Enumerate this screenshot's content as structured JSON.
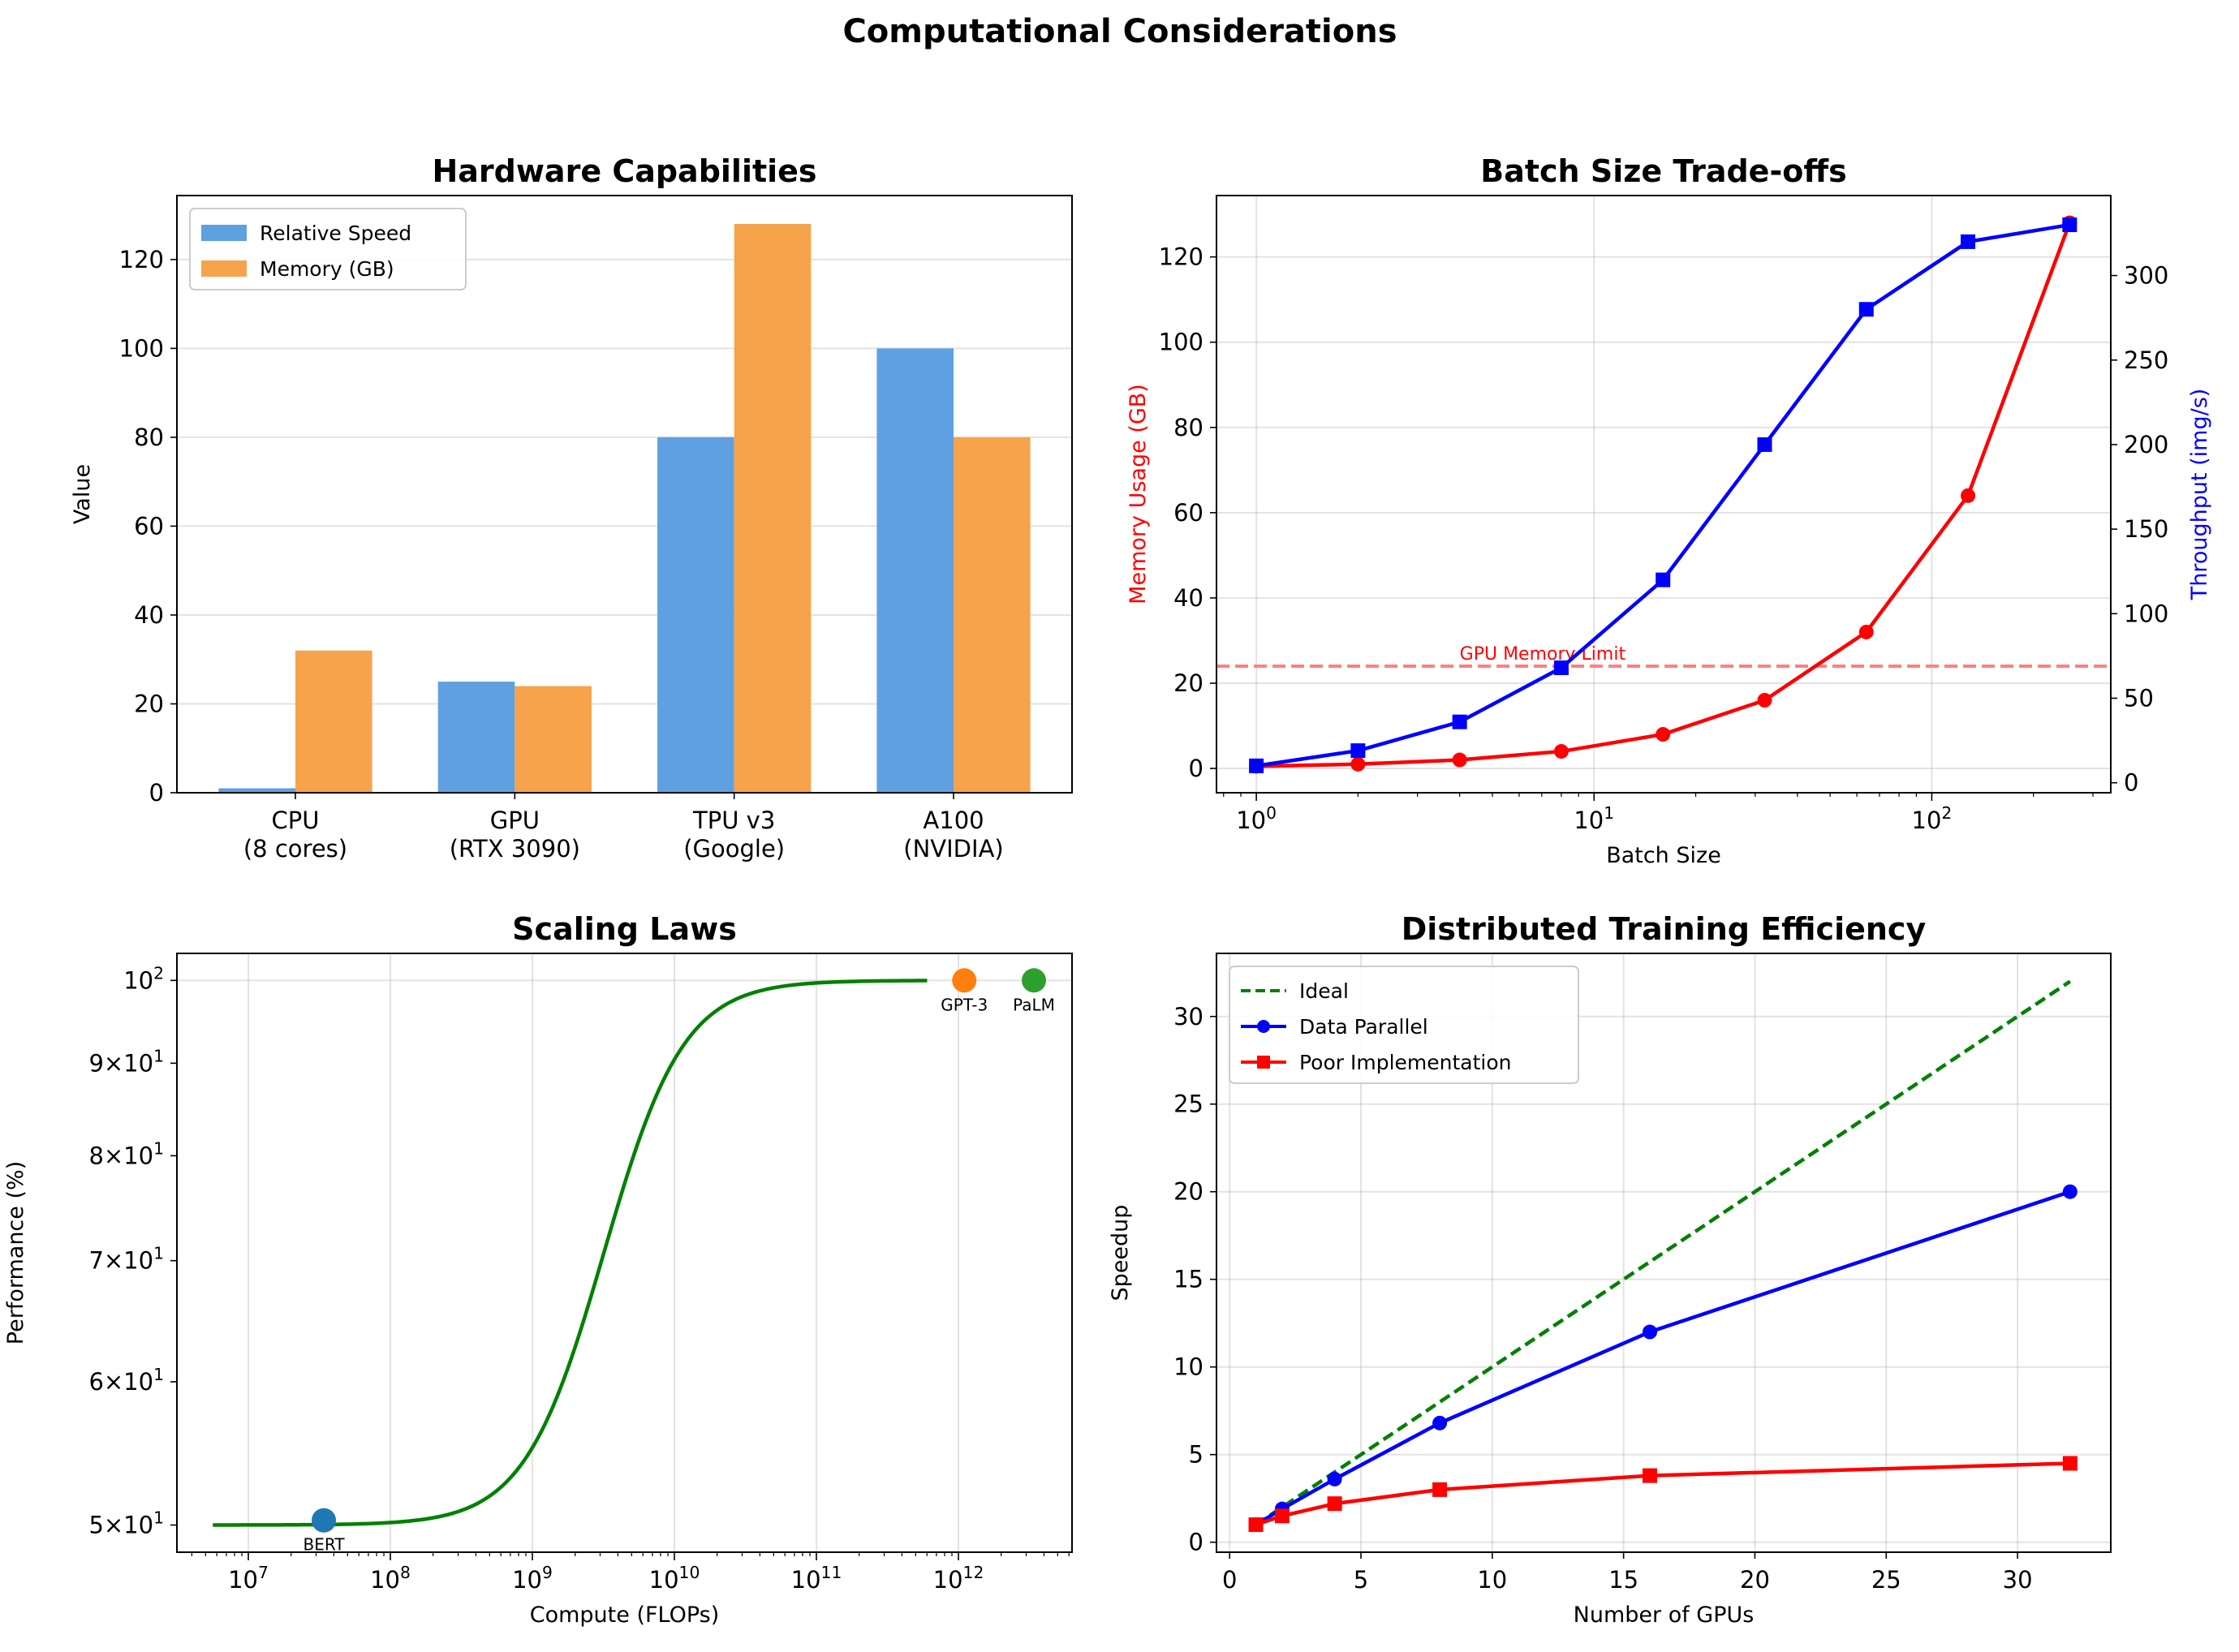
{
  "figure_title": "Computational Considerations",
  "chart_data": [
    {
      "type": "bar",
      "title": "Hardware Capabilities",
      "xlabel": "",
      "ylabel": "Value",
      "categories": [
        "CPU\n(8 cores)",
        "GPU\n(RTX 3090)",
        "TPU v3\n(Google)",
        "A100\n(NVIDIA)"
      ],
      "series": [
        {
          "name": "Relative Speed",
          "values": [
            1,
            25,
            80,
            100
          ],
          "color": "#5fa0e0"
        },
        {
          "name": "Memory (GB)",
          "values": [
            32,
            24,
            128,
            80
          ],
          "color": "#f7a34b"
        }
      ],
      "ylim": [
        0,
        134.4
      ],
      "xlim": [
        -0.54,
        3.54
      ],
      "yticks": [
        0,
        20,
        40,
        60,
        80,
        100,
        120
      ],
      "grid": "y",
      "legend": "top-left"
    },
    {
      "type": "line",
      "title": "Batch Size Trade-offs",
      "xlabel": "Batch Size",
      "ylabel": "Memory Usage (GB)",
      "ylabel_right": "Throughput (img/s)",
      "xscale": "log",
      "x": [
        1,
        2,
        4,
        8,
        16,
        32,
        64,
        128,
        256
      ],
      "series": [
        {
          "name": "Memory Usage (GB)",
          "axis": "left",
          "values": [
            0.5,
            1,
            2,
            4,
            8,
            16,
            32,
            64,
            128
          ],
          "color": "#ff0000",
          "marker": "circle"
        },
        {
          "name": "Throughput (img/s)",
          "axis": "right",
          "values": [
            10,
            19,
            36,
            68,
            120,
            200,
            280,
            320,
            330
          ],
          "color": "#0000ff",
          "marker": "square"
        }
      ],
      "hline": {
        "value": 24,
        "label": "GPU Memory Limit",
        "label_x": 4,
        "color": "#ff8080"
      },
      "xlim_log10": [
        -0.118,
        2.53
      ],
      "ylim": [
        -5.7,
        134.4
      ],
      "ylim_right": [
        -5.9,
        347.3
      ],
      "xticks": [
        "10^0",
        "10^1",
        "10^2"
      ],
      "yticks": [
        0,
        20,
        40,
        60,
        80,
        100,
        120
      ],
      "yticks_right": [
        0,
        50,
        100,
        150,
        200,
        250,
        300
      ],
      "grid": true
    },
    {
      "type": "line",
      "title": "Scaling Laws",
      "xlabel": "Compute (FLOPs)",
      "ylabel": "Performance (%)",
      "xscale": "log",
      "yscale": "log",
      "curve": {
        "kind": "sigmoid",
        "lower": 50,
        "upper": 100,
        "midpoint_log10": 9.6,
        "steepness": 3.6,
        "x_range_log10": [
          6.75,
          11.78
        ],
        "color": "#008000"
      },
      "points": [
        {
          "label": "BERT",
          "x": 34000000,
          "y": 50.3,
          "color": "#1f77b4"
        },
        {
          "label": "GPT-3",
          "x": 1100000000000,
          "y": 100,
          "color": "#ff7f0e"
        },
        {
          "label": "PaLM",
          "x": 3400000000000,
          "y": 100,
          "color": "#2ca02c"
        }
      ],
      "xlim_log10": [
        6.497,
        12.8
      ],
      "ylim": [
        48.3,
        103.5
      ],
      "xticks": [
        "10^7",
        "10^8",
        "10^9",
        "10^10",
        "10^11",
        "10^12"
      ],
      "yticks": [
        {
          "v": 50,
          "label": "5×10^1"
        },
        {
          "v": 60,
          "label": "6×10^1"
        },
        {
          "v": 70,
          "label": "7×10^1"
        },
        {
          "v": 80,
          "label": "8×10^1"
        },
        {
          "v": 90,
          "label": "9×10^1"
        },
        {
          "v": 100,
          "label": "10^2"
        }
      ],
      "grid": true
    },
    {
      "type": "line",
      "title": "Distributed Training Efficiency",
      "xlabel": "Number of GPUs",
      "ylabel": "Speedup",
      "x": [
        1,
        2,
        4,
        8,
        16,
        32
      ],
      "series": [
        {
          "name": "Ideal",
          "values": [
            1,
            2,
            4,
            8,
            16,
            32
          ],
          "color": "#008000",
          "style": "dashed",
          "marker": "none"
        },
        {
          "name": "Data Parallel",
          "values": [
            1,
            1.9,
            3.6,
            6.8,
            12,
            20
          ],
          "color": "#0000ff",
          "style": "solid",
          "marker": "circle"
        },
        {
          "name": "Poor Implementation",
          "values": [
            1,
            1.5,
            2.2,
            3,
            3.8,
            4.5
          ],
          "color": "#ff0000",
          "style": "solid",
          "marker": "square"
        }
      ],
      "xlim": [
        -0.5,
        33.55
      ],
      "ylim": [
        -0.57,
        33.6
      ],
      "xticks": [
        0,
        5,
        10,
        15,
        20,
        25,
        30
      ],
      "yticks": [
        0,
        5,
        10,
        15,
        20,
        25,
        30
      ],
      "grid": true,
      "legend": "top-left"
    }
  ]
}
